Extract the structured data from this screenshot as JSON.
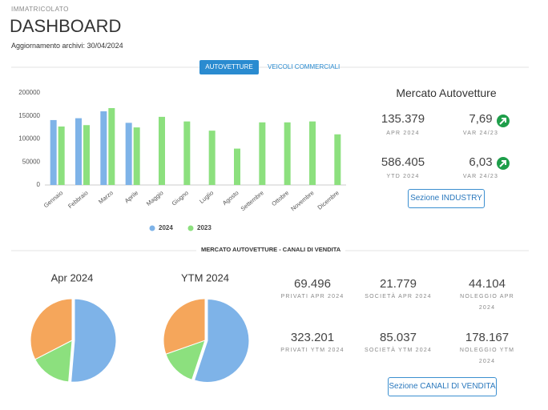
{
  "header": {
    "section": "IMMATRICOLATO",
    "title": "DASHBOARD",
    "update_label": "Aggiornamento archivi:",
    "update_date": "30/04/2024"
  },
  "tabs": [
    "AUTOVETTURE",
    "VEICOLI COMMERCIALI"
  ],
  "market": {
    "title": "Mercato Autovetture",
    "items": [
      {
        "value": "135.379",
        "label": "APR 2024"
      },
      {
        "value": "7,69",
        "label": "VAR 24/23"
      },
      {
        "value": "586.405",
        "label": "YTD 2024"
      },
      {
        "value": "6,03",
        "label": "VAR 24/23"
      }
    ],
    "button": "Sezione INDUSTRY"
  },
  "channels": {
    "title": "MERCATO AUTOVETTURE - CANALI DI VENDITA",
    "items": [
      {
        "value": "69.496",
        "label": "PRIVATI APR 2024"
      },
      {
        "value": "21.779",
        "label": "SOCIETÀ APR 2024"
      },
      {
        "value": "44.104",
        "label": "NOLEGGIO APR 2024"
      },
      {
        "value": "323.201",
        "label": "PRIVATI YTM 2024"
      },
      {
        "value": "85.037",
        "label": "SOCIETÀ YTM 2024"
      },
      {
        "value": "178.167",
        "label": "NOLEGGIO YTM 2024"
      }
    ],
    "button": "Sezione CANALI DI VENDITA"
  },
  "chart_data": [
    {
      "type": "bar",
      "categories": [
        "Gennaio",
        "Febbraio",
        "Marzo",
        "Aprile",
        "Maggio",
        "Giugno",
        "Luglio",
        "Agosto",
        "Settembre",
        "Ottobre",
        "Novembre",
        "Dicembre"
      ],
      "series": [
        {
          "name": "2024",
          "color": "#7eb3e8",
          "values": [
            141000,
            145000,
            160000,
            135000,
            null,
            null,
            null,
            null,
            null,
            null,
            null,
            null
          ]
        },
        {
          "name": "2023",
          "color": "#8ce07e",
          "values": [
            127000,
            130000,
            167000,
            125000,
            148000,
            138000,
            118000,
            79000,
            136000,
            136000,
            138000,
            110000
          ]
        }
      ],
      "ylim": [
        0,
        200000
      ],
      "yticks": [
        0,
        50000,
        100000,
        150000,
        200000
      ],
      "grid": false,
      "legend": "bottom"
    },
    {
      "type": "pie",
      "title": "Apr 2024",
      "values": [
        69496,
        21779,
        44104
      ],
      "colors": [
        "#7eb3e8",
        "#8ce07e",
        "#f5a65b"
      ]
    },
    {
      "type": "pie",
      "title": "YTM 2024",
      "values": [
        323201,
        85037,
        178167
      ],
      "colors": [
        "#7eb3e8",
        "#8ce07e",
        "#f5a65b"
      ]
    }
  ]
}
